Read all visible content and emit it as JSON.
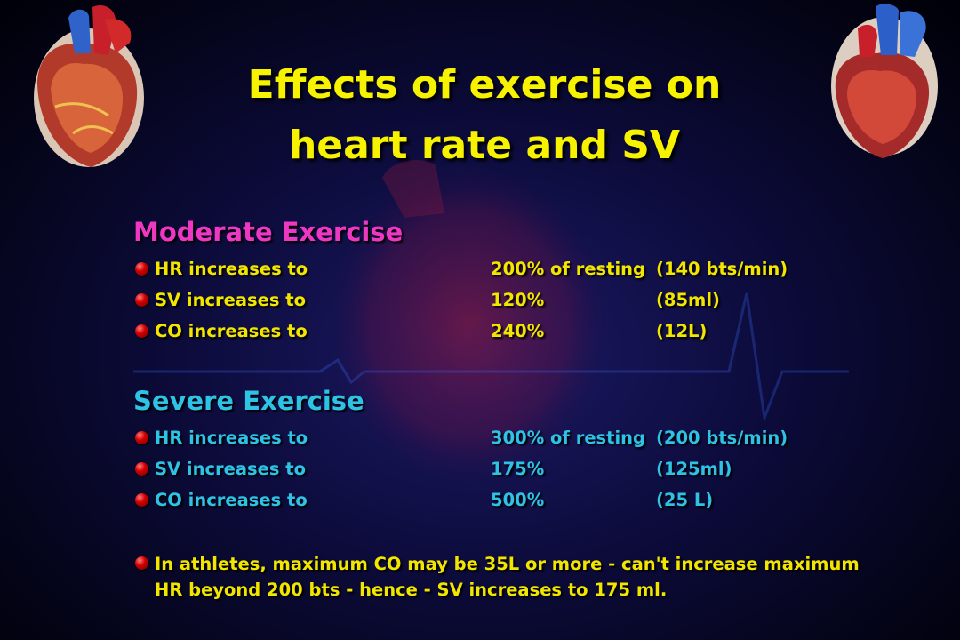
{
  "title": {
    "line1": "Effects of exercise on",
    "line2": "heart rate and SV"
  },
  "colors": {
    "background": "#0c0b3a",
    "title": "#f6f200",
    "moderate_heading": "#ee38c4",
    "severe_heading": "#2ec2e4",
    "moderate_text": "#f2e600",
    "severe_text": "#2ec2e4",
    "bullet": "#d40000"
  },
  "icons": [
    "heart-illustration-left",
    "heart-illustration-right",
    "red-sphere-bullet-icon"
  ],
  "moderate": {
    "heading": "Moderate Exercise",
    "rows": [
      {
        "label": "HR increases to",
        "value": "200% of resting",
        "detail": "(140 bts/min)"
      },
      {
        "label": "SV increases to",
        "value": "120%",
        "detail": "(85ml)"
      },
      {
        "label": "CO increases to",
        "value": "240%",
        "detail": "(12L)"
      }
    ]
  },
  "severe": {
    "heading": "Severe Exercise",
    "rows": [
      {
        "label": "HR increases to",
        "value": "300% of resting",
        "detail": "(200 bts/min)"
      },
      {
        "label": "SV increases to",
        "value": "175%",
        "detail": "(125ml)"
      },
      {
        "label": "CO increases to",
        "value": "500%",
        "detail": "(25 L)"
      }
    ]
  },
  "note": {
    "line1": "In athletes, maximum CO may be 35L or more - can't increase maximum",
    "line2": "HR beyond 200 bts  - hence - SV increases to 175 ml."
  }
}
